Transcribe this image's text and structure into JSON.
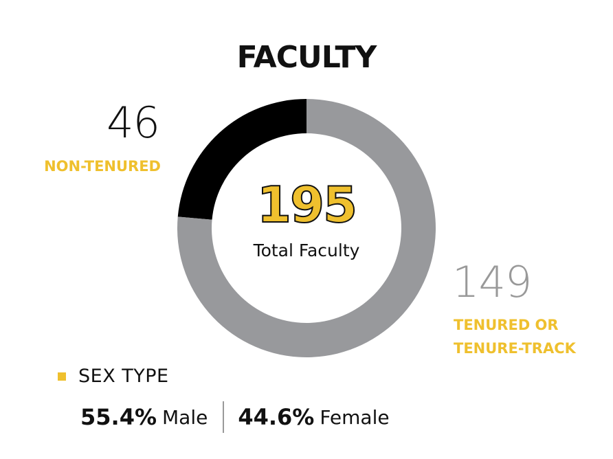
{
  "title": "FACULTY",
  "chart_data": {
    "type": "pie",
    "style": "donut",
    "total": 195,
    "total_label": "Total Faculty",
    "slices": [
      {
        "name": "NON-TENURED",
        "value": 46,
        "color": "#000000"
      },
      {
        "name": "TENURED OR\nTENURE-TRACK",
        "value": 149,
        "color": "#98999c"
      }
    ]
  },
  "labels": {
    "nontenured_value": "46",
    "nontenured_label": "NON-TENURED",
    "tenured_value": "149",
    "tenured_label": "TENURED OR\nTENURE-TRACK"
  },
  "sex": {
    "title": "SEX TYPE",
    "male_pct": "55.4%",
    "male_label": "Male",
    "female_pct": "44.6%",
    "female_label": "Female",
    "bullet_color": "#efc02e"
  }
}
